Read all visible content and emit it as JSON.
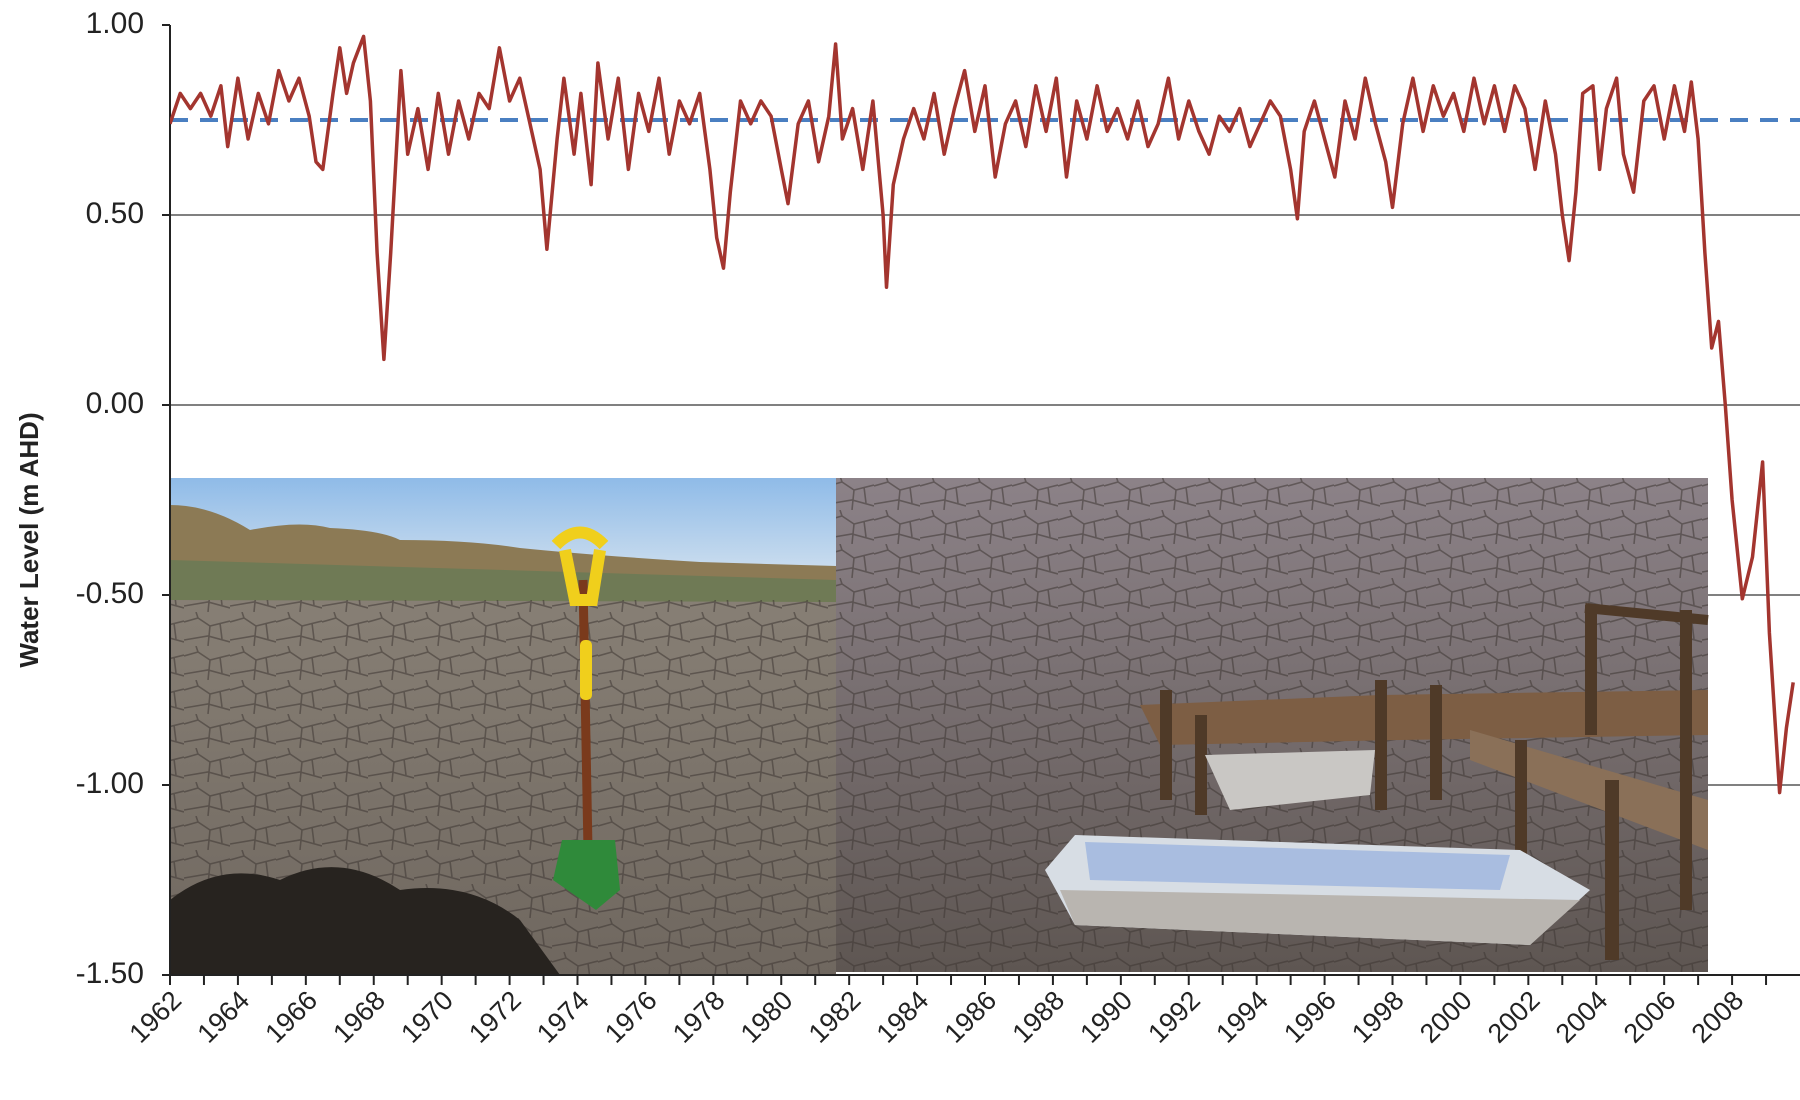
{
  "chart_data": {
    "type": "line",
    "y_label": "Water Level (m AHD)",
    "ylim": [
      -1.5,
      1.0
    ],
    "yticks": [
      {
        "value": 1.0,
        "label": "1.00"
      },
      {
        "value": 0.5,
        "label": "0.50"
      },
      {
        "value": 0.0,
        "label": "0.00"
      },
      {
        "value": -0.5,
        "label": "-0.50"
      },
      {
        "value": -1.0,
        "label": "-1.00"
      },
      {
        "value": -1.5,
        "label": "-1.50"
      }
    ],
    "xlim": [
      1962,
      2010
    ],
    "xticks": [
      1962,
      1964,
      1966,
      1968,
      1970,
      1972,
      1974,
      1976,
      1978,
      1980,
      1982,
      1984,
      1986,
      1988,
      1990,
      1992,
      1994,
      1996,
      1998,
      2000,
      2002,
      2004,
      2006,
      2008
    ],
    "grid": true,
    "reference_line": {
      "value": 0.75,
      "color": "#4a7fc1",
      "dashed": true
    },
    "x": [
      1962.0,
      1962.3,
      1962.6,
      1962.9,
      1963.2,
      1963.5,
      1963.7,
      1964.0,
      1964.3,
      1964.6,
      1964.9,
      1965.2,
      1965.5,
      1965.8,
      1966.1,
      1966.3,
      1966.5,
      1966.8,
      1967.0,
      1967.2,
      1967.4,
      1967.7,
      1967.9,
      1968.1,
      1968.3,
      1968.5,
      1968.7,
      1968.8,
      1969.0,
      1969.3,
      1969.6,
      1969.9,
      1970.2,
      1970.5,
      1970.8,
      1971.1,
      1971.4,
      1971.7,
      1972.0,
      1972.3,
      1972.6,
      1972.9,
      1973.1,
      1973.4,
      1973.6,
      1973.9,
      1974.1,
      1974.4,
      1974.6,
      1974.9,
      1975.2,
      1975.5,
      1975.8,
      1976.1,
      1976.4,
      1976.7,
      1977.0,
      1977.3,
      1977.6,
      1977.9,
      1978.1,
      1978.3,
      1978.5,
      1978.8,
      1979.1,
      1979.4,
      1979.7,
      1980.0,
      1980.2,
      1980.5,
      1980.8,
      1981.1,
      1981.4,
      1981.6,
      1981.8,
      1982.1,
      1982.4,
      1982.7,
      1983.0,
      1983.1,
      1983.3,
      1983.6,
      1983.9,
      1984.2,
      1984.5,
      1984.8,
      1985.1,
      1985.4,
      1985.7,
      1986.0,
      1986.3,
      1986.6,
      1986.9,
      1987.2,
      1987.5,
      1987.8,
      1988.1,
      1988.4,
      1988.7,
      1989.0,
      1989.3,
      1989.6,
      1989.9,
      1990.2,
      1990.5,
      1990.8,
      1991.1,
      1991.4,
      1991.7,
      1992.0,
      1992.3,
      1992.6,
      1992.9,
      1993.2,
      1993.5,
      1993.8,
      1994.1,
      1994.4,
      1994.7,
      1995.0,
      1995.2,
      1995.4,
      1995.7,
      1996.0,
      1996.3,
      1996.6,
      1996.9,
      1997.2,
      1997.5,
      1997.8,
      1998.0,
      1998.3,
      1998.6,
      1998.9,
      1999.2,
      1999.5,
      1999.8,
      2000.1,
      2000.4,
      2000.7,
      2001.0,
      2001.3,
      2001.6,
      2001.9,
      2002.2,
      2002.5,
      2002.8,
      2003.0,
      2003.2,
      2003.4,
      2003.6,
      2003.9,
      2004.1,
      2004.3,
      2004.6,
      2004.8,
      2005.1,
      2005.4,
      2005.7,
      2006.0,
      2006.3,
      2006.6,
      2006.8,
      2007.0,
      2007.2,
      2007.4,
      2007.6,
      2007.8,
      2008.0,
      2008.3,
      2008.6,
      2008.9,
      2009.1,
      2009.4,
      2009.6,
      2009.8
    ],
    "series": [
      {
        "color": "#a3352f",
        "values": [
          0.74,
          0.82,
          0.78,
          0.82,
          0.76,
          0.84,
          0.68,
          0.86,
          0.7,
          0.82,
          0.74,
          0.88,
          0.8,
          0.86,
          0.76,
          0.64,
          0.62,
          0.82,
          0.94,
          0.82,
          0.9,
          0.97,
          0.8,
          0.4,
          0.12,
          0.4,
          0.72,
          0.88,
          0.66,
          0.78,
          0.62,
          0.82,
          0.66,
          0.8,
          0.7,
          0.82,
          0.78,
          0.94,
          0.8,
          0.86,
          0.74,
          0.62,
          0.41,
          0.7,
          0.86,
          0.66,
          0.82,
          0.58,
          0.9,
          0.7,
          0.86,
          0.62,
          0.82,
          0.72,
          0.86,
          0.66,
          0.8,
          0.74,
          0.82,
          0.62,
          0.44,
          0.36,
          0.56,
          0.8,
          0.74,
          0.8,
          0.76,
          0.62,
          0.53,
          0.74,
          0.8,
          0.64,
          0.76,
          0.95,
          0.7,
          0.78,
          0.62,
          0.8,
          0.5,
          0.31,
          0.58,
          0.7,
          0.78,
          0.7,
          0.82,
          0.66,
          0.78,
          0.88,
          0.72,
          0.84,
          0.6,
          0.74,
          0.8,
          0.68,
          0.84,
          0.72,
          0.86,
          0.6,
          0.8,
          0.7,
          0.84,
          0.72,
          0.78,
          0.7,
          0.8,
          0.68,
          0.74,
          0.86,
          0.7,
          0.8,
          0.72,
          0.66,
          0.76,
          0.72,
          0.78,
          0.68,
          0.74,
          0.8,
          0.76,
          0.62,
          0.49,
          0.72,
          0.8,
          0.7,
          0.6,
          0.8,
          0.7,
          0.86,
          0.74,
          0.64,
          0.52,
          0.74,
          0.86,
          0.72,
          0.84,
          0.76,
          0.82,
          0.72,
          0.86,
          0.74,
          0.84,
          0.72,
          0.84,
          0.78,
          0.62,
          0.8,
          0.66,
          0.5,
          0.38,
          0.56,
          0.82,
          0.84,
          0.62,
          0.78,
          0.86,
          0.66,
          0.56,
          0.8,
          0.84,
          0.7,
          0.84,
          0.72,
          0.85,
          0.7,
          0.4,
          0.15,
          0.22,
          0.0,
          -0.25,
          -0.51,
          -0.4,
          -0.15,
          -0.6,
          -1.02,
          -0.85,
          -0.73
        ]
      }
    ]
  }
}
